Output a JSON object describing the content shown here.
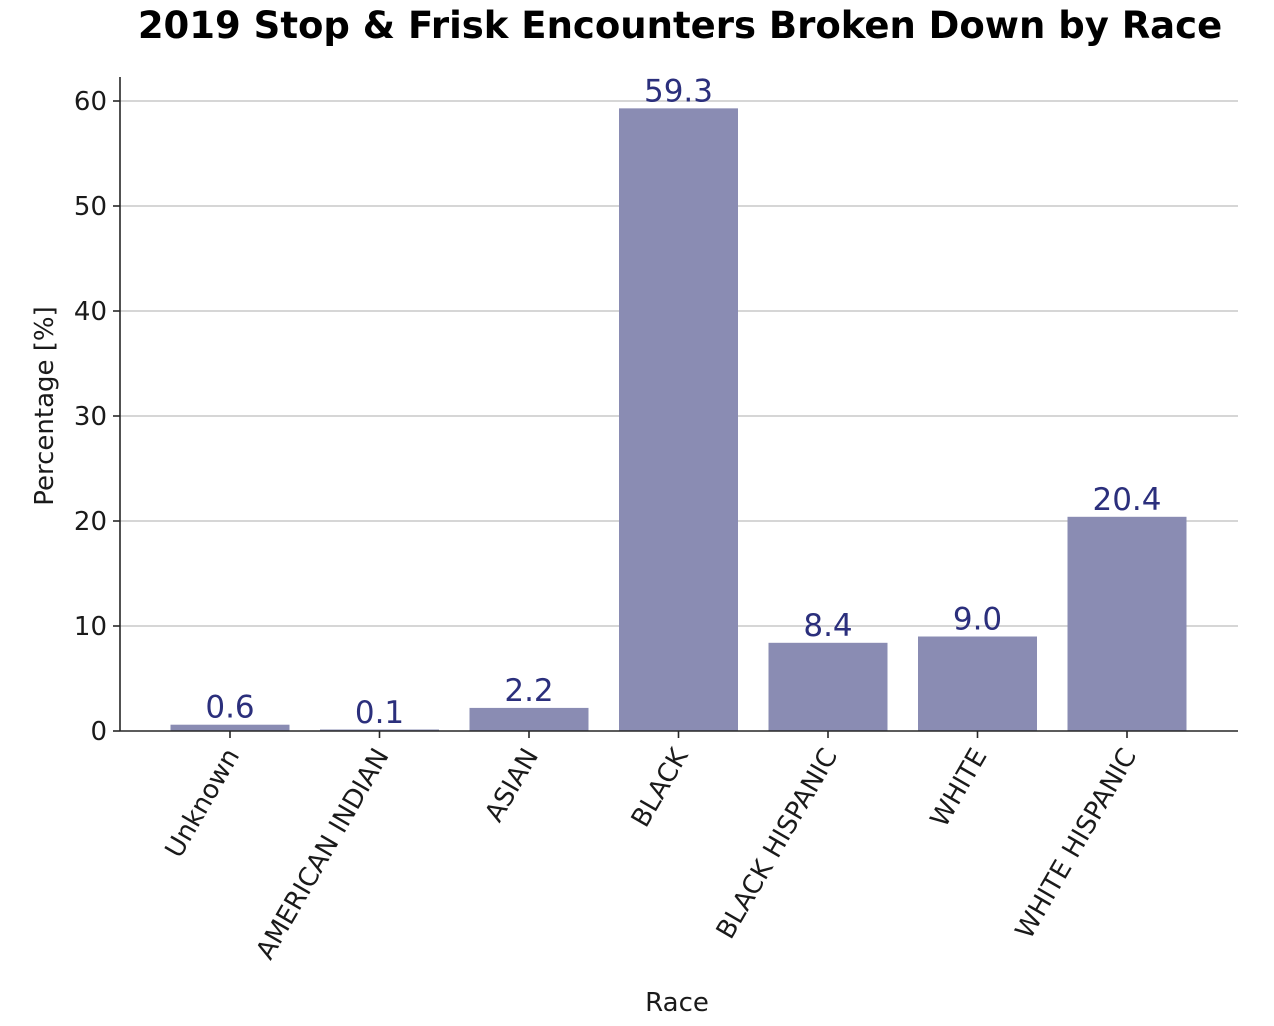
{
  "chart_data": {
    "type": "bar",
    "title": "2019 Stop & Frisk Encounters Broken Down by Race",
    "xlabel": "Race",
    "ylabel": "Percentage [%]",
    "categories": [
      "Unknown",
      "AMERICAN INDIAN",
      "ASIAN",
      "BLACK",
      "BLACK HISPANIC",
      "WHITE",
      "WHITE HISPANIC"
    ],
    "values": [
      0.6,
      0.1,
      2.2,
      59.3,
      8.4,
      9.0,
      20.4
    ],
    "value_labels": [
      "0.6",
      "0.1",
      "2.2",
      "59.3",
      "8.4",
      "9.0",
      "20.4"
    ],
    "ylim": [
      0,
      62.3
    ],
    "yticks": [
      0,
      10,
      20,
      30,
      40,
      50,
      60
    ],
    "grid": "horizontal",
    "bar_color": "#8a8cb3",
    "label_color": "#2b2f7c"
  }
}
